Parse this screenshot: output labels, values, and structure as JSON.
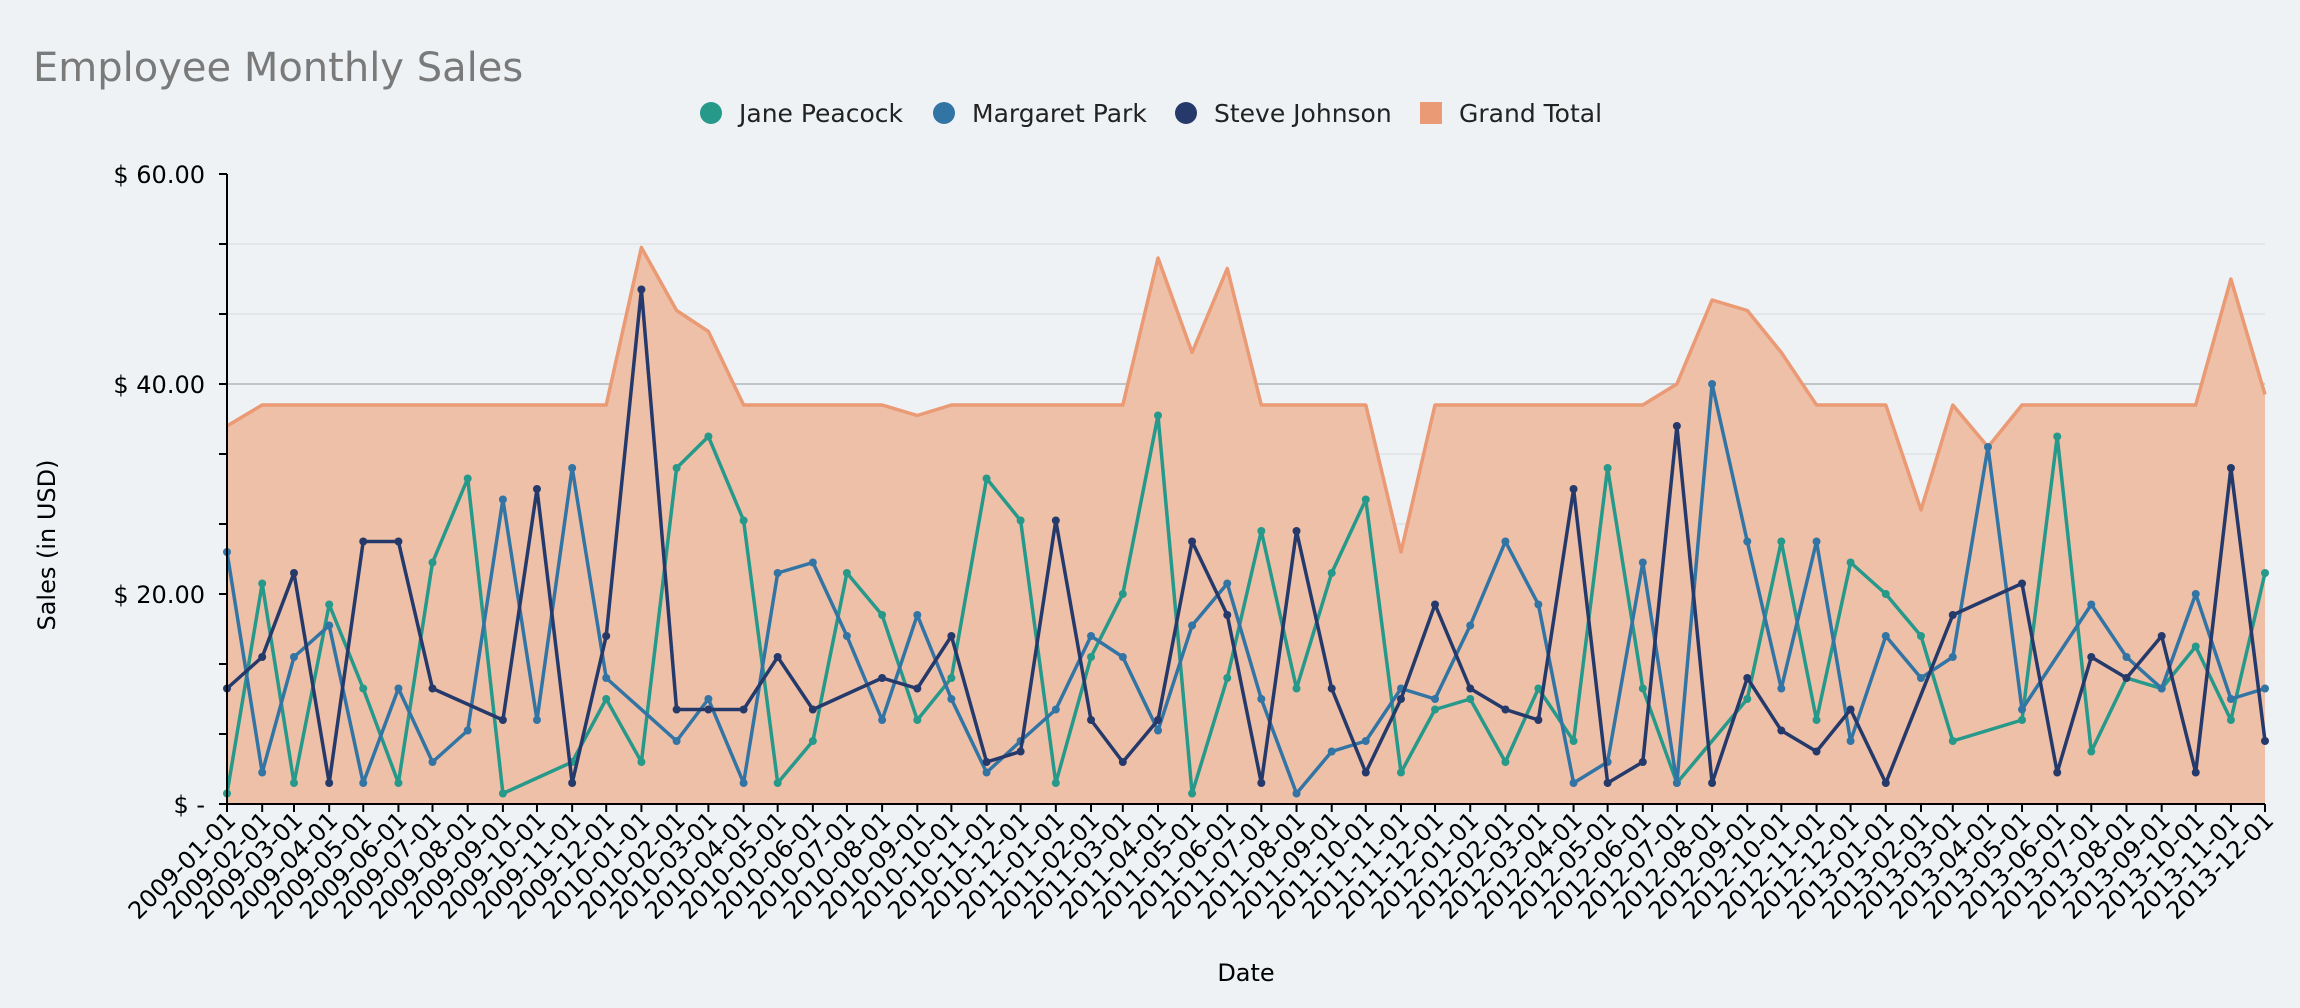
{
  "chart_data": {
    "type": "line",
    "title": "Employee Monthly Sales",
    "xlabel": "Date",
    "ylabel": "Sales (in USD)",
    "ylim": [
      0,
      60
    ],
    "y_ticks": [
      {
        "value": 0,
        "label": "$ -"
      },
      {
        "value": 20,
        "label": "$ 20.00"
      },
      {
        "value": 40,
        "label": "$ 40.00"
      },
      {
        "value": 60,
        "label": "$ 60.00"
      }
    ],
    "grid": true,
    "legend_position": "top-center",
    "x_tick_labels": [
      "2009-01-01",
      "2009-02-01",
      "2009-03-01",
      "2009-04-01",
      "2009-05-01",
      "2009-06-01",
      "2009-07-01",
      "2009-08-01",
      "2009-09-01",
      "2009-10-01",
      "2009-11-01",
      "2009-12-01",
      "2010-01-01",
      "2010-02-01",
      "2010-03-01",
      "2010-04-01",
      "2010-05-01",
      "2010-06-01",
      "2010-07-01",
      "2010-08-01",
      "2010-09-01",
      "2010-10-01",
      "2010-11-01",
      "2010-12-01",
      "2011-01-01",
      "2011-02-01",
      "2011-03-01",
      "2011-04-01",
      "2011-05-01",
      "2011-06-01",
      "2011-07-01",
      "2011-08-01",
      "2011-09-01",
      "2011-10-01",
      "2011-11-01",
      "2011-12-01",
      "2012-01-01",
      "2012-02-01",
      "2012-03-01",
      "2012-04-01",
      "2012-05-01",
      "2012-06-01",
      "2012-07-01",
      "2012-08-01",
      "2012-09-01",
      "2012-10-01",
      "2012-11-01",
      "2012-12-01",
      "2013-01-01",
      "2013-02-01",
      "2013-03-01",
      "2013-04-01",
      "2013-05-01",
      "2013-06-01",
      "2013-07-01",
      "2013-08-01",
      "2013-09-01",
      "2013-10-01",
      "2013-11-01",
      "2013-12-01"
    ],
    "x_range": [
      "2009-01-01",
      "2013-12-01"
    ],
    "series": [
      {
        "name": "Jane Peacock",
        "type": "line",
        "color": "#26998a",
        "points": [
          [
            "2009-01-01",
            1
          ],
          [
            "2009-02-01",
            21
          ],
          [
            "2009-03-01",
            2
          ],
          [
            "2009-04-01",
            19
          ],
          [
            "2009-05-01",
            11
          ],
          [
            "2009-06-01",
            2
          ],
          [
            "2009-07-01",
            23
          ],
          [
            "2009-08-01",
            31
          ],
          [
            "2009-09-01",
            1
          ],
          [
            "2009-11-01",
            4
          ],
          [
            "2009-12-01",
            10
          ],
          [
            "2010-01-01",
            4
          ],
          [
            "2010-02-01",
            32
          ],
          [
            "2010-03-01",
            35
          ],
          [
            "2010-04-01",
            27
          ],
          [
            "2010-05-01",
            2
          ],
          [
            "2010-06-01",
            6
          ],
          [
            "2010-07-01",
            22
          ],
          [
            "2010-08-01",
            18
          ],
          [
            "2010-09-01",
            8
          ],
          [
            "2010-10-01",
            12
          ],
          [
            "2010-11-01",
            31
          ],
          [
            "2010-12-01",
            27
          ],
          [
            "2011-01-01",
            2
          ],
          [
            "2011-02-01",
            14
          ],
          [
            "2011-03-01",
            20
          ],
          [
            "2011-04-01",
            37
          ],
          [
            "2011-05-01",
            1
          ],
          [
            "2011-06-01",
            12
          ],
          [
            "2011-07-01",
            26
          ],
          [
            "2011-08-01",
            11
          ],
          [
            "2011-09-01",
            22
          ],
          [
            "2011-10-01",
            29
          ],
          [
            "2011-11-01",
            3
          ],
          [
            "2011-12-01",
            9
          ],
          [
            "2012-01-01",
            10
          ],
          [
            "2012-02-01",
            4
          ],
          [
            "2012-03-01",
            11
          ],
          [
            "2012-04-01",
            6
          ],
          [
            "2012-05-01",
            32
          ],
          [
            "2012-06-01",
            11
          ],
          [
            "2012-07-01",
            2
          ],
          [
            "2012-09-01",
            10
          ],
          [
            "2012-10-01",
            25
          ],
          [
            "2012-11-01",
            8
          ],
          [
            "2012-12-01",
            23
          ],
          [
            "2013-01-01",
            20
          ],
          [
            "2013-02-01",
            16
          ],
          [
            "2013-03-01",
            6
          ],
          [
            "2013-05-01",
            8
          ],
          [
            "2013-06-01",
            35
          ],
          [
            "2013-07-01",
            5
          ],
          [
            "2013-08-01",
            12
          ],
          [
            "2013-09-01",
            11
          ],
          [
            "2013-10-01",
            15
          ],
          [
            "2013-11-01",
            8
          ],
          [
            "2013-12-01",
            22
          ]
        ]
      },
      {
        "name": "Margaret Park",
        "type": "line",
        "color": "#3275a5",
        "points": [
          [
            "2009-01-01",
            24
          ],
          [
            "2009-02-01",
            3
          ],
          [
            "2009-03-01",
            14
          ],
          [
            "2009-04-01",
            17
          ],
          [
            "2009-05-01",
            2
          ],
          [
            "2009-06-01",
            11
          ],
          [
            "2009-07-01",
            4
          ],
          [
            "2009-08-01",
            7
          ],
          [
            "2009-09-01",
            29
          ],
          [
            "2009-10-01",
            8
          ],
          [
            "2009-11-01",
            32
          ],
          [
            "2009-12-01",
            12
          ],
          [
            "2010-02-01",
            6
          ],
          [
            "2010-03-01",
            10
          ],
          [
            "2010-04-01",
            2
          ],
          [
            "2010-05-01",
            22
          ],
          [
            "2010-06-01",
            23
          ],
          [
            "2010-07-01",
            16
          ],
          [
            "2010-08-01",
            8
          ],
          [
            "2010-09-01",
            18
          ],
          [
            "2010-10-01",
            10
          ],
          [
            "2010-11-01",
            3
          ],
          [
            "2010-12-01",
            6
          ],
          [
            "2011-01-01",
            9
          ],
          [
            "2011-02-01",
            16
          ],
          [
            "2011-03-01",
            14
          ],
          [
            "2011-04-01",
            7
          ],
          [
            "2011-05-01",
            17
          ],
          [
            "2011-06-01",
            21
          ],
          [
            "2011-07-01",
            10
          ],
          [
            "2011-08-01",
            1
          ],
          [
            "2011-09-01",
            5
          ],
          [
            "2011-10-01",
            6
          ],
          [
            "2011-11-01",
            11
          ],
          [
            "2011-12-01",
            10
          ],
          [
            "2012-01-01",
            17
          ],
          [
            "2012-02-01",
            25
          ],
          [
            "2012-03-01",
            19
          ],
          [
            "2012-04-01",
            2
          ],
          [
            "2012-05-01",
            4
          ],
          [
            "2012-06-01",
            23
          ],
          [
            "2012-07-01",
            2
          ],
          [
            "2012-08-01",
            40
          ],
          [
            "2012-09-01",
            25
          ],
          [
            "2012-10-01",
            11
          ],
          [
            "2012-11-01",
            25
          ],
          [
            "2012-12-01",
            6
          ],
          [
            "2013-01-01",
            16
          ],
          [
            "2013-02-01",
            12
          ],
          [
            "2013-03-01",
            14
          ],
          [
            "2013-04-01",
            34
          ],
          [
            "2013-05-01",
            9
          ],
          [
            "2013-07-01",
            19
          ],
          [
            "2013-08-01",
            14
          ],
          [
            "2013-09-01",
            11
          ],
          [
            "2013-10-01",
            20
          ],
          [
            "2013-11-01",
            10
          ],
          [
            "2013-12-01",
            11
          ]
        ]
      },
      {
        "name": "Steve Johnson",
        "type": "line",
        "color": "#253a6b",
        "points": [
          [
            "2009-01-01",
            11
          ],
          [
            "2009-02-01",
            14
          ],
          [
            "2009-03-01",
            22
          ],
          [
            "2009-04-01",
            2
          ],
          [
            "2009-05-01",
            25
          ],
          [
            "2009-06-01",
            25
          ],
          [
            "2009-07-01",
            11
          ],
          [
            "2009-09-01",
            8
          ],
          [
            "2009-10-01",
            30
          ],
          [
            "2009-11-01",
            2
          ],
          [
            "2009-12-01",
            16
          ],
          [
            "2010-01-01",
            49
          ],
          [
            "2010-02-01",
            9
          ],
          [
            "2010-03-01",
            9
          ],
          [
            "2010-04-01",
            9
          ],
          [
            "2010-05-01",
            14
          ],
          [
            "2010-06-01",
            9
          ],
          [
            "2010-08-01",
            12
          ],
          [
            "2010-09-01",
            11
          ],
          [
            "2010-10-01",
            16
          ],
          [
            "2010-11-01",
            4
          ],
          [
            "2010-12-01",
            5
          ],
          [
            "2011-01-01",
            27
          ],
          [
            "2011-02-01",
            8
          ],
          [
            "2011-03-01",
            4
          ],
          [
            "2011-04-01",
            8
          ],
          [
            "2011-05-01",
            25
          ],
          [
            "2011-06-01",
            18
          ],
          [
            "2011-07-01",
            2
          ],
          [
            "2011-08-01",
            26
          ],
          [
            "2011-09-01",
            11
          ],
          [
            "2011-10-01",
            3
          ],
          [
            "2011-11-01",
            10
          ],
          [
            "2011-12-01",
            19
          ],
          [
            "2012-01-01",
            11
          ],
          [
            "2012-02-01",
            9
          ],
          [
            "2012-03-01",
            8
          ],
          [
            "2012-04-01",
            30
          ],
          [
            "2012-05-01",
            2
          ],
          [
            "2012-06-01",
            4
          ],
          [
            "2012-07-01",
            36
          ],
          [
            "2012-08-01",
            2
          ],
          [
            "2012-09-01",
            12
          ],
          [
            "2012-10-01",
            7
          ],
          [
            "2012-11-01",
            5
          ],
          [
            "2012-12-01",
            9
          ],
          [
            "2013-01-01",
            2
          ],
          [
            "2013-03-01",
            18
          ],
          [
            "2013-05-01",
            21
          ],
          [
            "2013-06-01",
            3
          ],
          [
            "2013-07-01",
            14
          ],
          [
            "2013-08-01",
            12
          ],
          [
            "2013-09-01",
            16
          ],
          [
            "2013-10-01",
            3
          ],
          [
            "2013-11-01",
            32
          ],
          [
            "2013-12-01",
            6
          ]
        ]
      },
      {
        "name": "Grand Total",
        "type": "area",
        "color": "#ea9a74",
        "fill": "#eec0a8",
        "points": [
          [
            "2009-01-01",
            36
          ],
          [
            "2009-02-01",
            38
          ],
          [
            "2009-03-01",
            38
          ],
          [
            "2009-04-01",
            38
          ],
          [
            "2009-05-01",
            38
          ],
          [
            "2009-06-01",
            38
          ],
          [
            "2009-07-01",
            38
          ],
          [
            "2009-08-01",
            38
          ],
          [
            "2009-09-01",
            38
          ],
          [
            "2009-10-01",
            38
          ],
          [
            "2009-11-01",
            38
          ],
          [
            "2009-12-01",
            38
          ],
          [
            "2010-01-01",
            53
          ],
          [
            "2010-02-01",
            47
          ],
          [
            "2010-03-01",
            45
          ],
          [
            "2010-04-01",
            38
          ],
          [
            "2010-05-01",
            38
          ],
          [
            "2010-06-01",
            38
          ],
          [
            "2010-07-01",
            38
          ],
          [
            "2010-08-01",
            38
          ],
          [
            "2010-09-01",
            37
          ],
          [
            "2010-10-01",
            38
          ],
          [
            "2010-11-01",
            38
          ],
          [
            "2010-12-01",
            38
          ],
          [
            "2011-01-01",
            38
          ],
          [
            "2011-02-01",
            38
          ],
          [
            "2011-03-01",
            38
          ],
          [
            "2011-04-01",
            52
          ],
          [
            "2011-05-01",
            43
          ],
          [
            "2011-06-01",
            51
          ],
          [
            "2011-07-01",
            38
          ],
          [
            "2011-08-01",
            38
          ],
          [
            "2011-09-01",
            38
          ],
          [
            "2011-10-01",
            38
          ],
          [
            "2011-11-01",
            24
          ],
          [
            "2011-12-01",
            38
          ],
          [
            "2012-01-01",
            38
          ],
          [
            "2012-02-01",
            38
          ],
          [
            "2012-03-01",
            38
          ],
          [
            "2012-04-01",
            38
          ],
          [
            "2012-05-01",
            38
          ],
          [
            "2012-06-01",
            38
          ],
          [
            "2012-07-01",
            40
          ],
          [
            "2012-08-01",
            48
          ],
          [
            "2012-09-01",
            47
          ],
          [
            "2012-10-01",
            43
          ],
          [
            "2012-11-01",
            38
          ],
          [
            "2012-12-01",
            38
          ],
          [
            "2013-01-01",
            38
          ],
          [
            "2013-02-01",
            28
          ],
          [
            "2013-03-01",
            38
          ],
          [
            "2013-04-01",
            34
          ],
          [
            "2013-05-01",
            38
          ],
          [
            "2013-06-01",
            38
          ],
          [
            "2013-07-01",
            38
          ],
          [
            "2013-08-01",
            38
          ],
          [
            "2013-09-01",
            38
          ],
          [
            "2013-10-01",
            38
          ],
          [
            "2013-11-01",
            50
          ],
          [
            "2013-12-01",
            39
          ]
        ]
      }
    ]
  }
}
